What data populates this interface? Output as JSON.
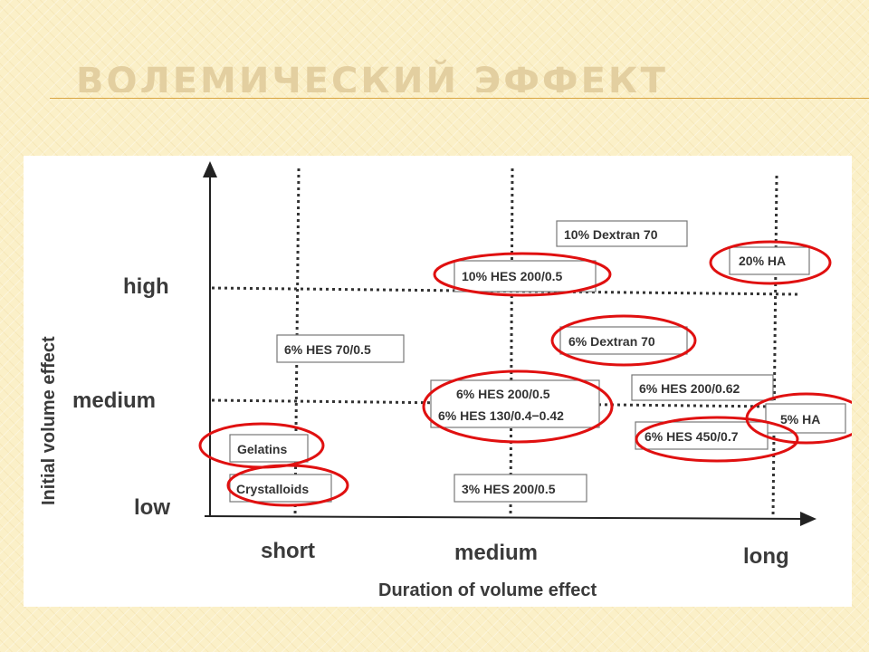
{
  "slide": {
    "title": "ВОЛЕМИЧЕСКИЙ ЭФФЕКТ"
  },
  "diagram": {
    "y_axis_title": "Initial volume effect",
    "x_axis_title": "Duration of volume effect",
    "y_levels": [
      "high",
      "medium",
      "low"
    ],
    "x_levels": [
      "short",
      "medium",
      "long"
    ],
    "items": [
      {
        "label": "10% Dextran 70",
        "circled": false
      },
      {
        "label": "20% HA",
        "circled": true
      },
      {
        "label": "10% HES 200/0.5",
        "circled": true
      },
      {
        "label": "6% Dextran 70",
        "circled": true
      },
      {
        "label": "6% HES 70/0.5",
        "circled": false
      },
      {
        "label": "6% HES 200/0.5",
        "circled": true
      },
      {
        "label": "6% HES 130/0.4−0.42",
        "circled": true
      },
      {
        "label": "6% HES 200/0.62",
        "circled": false
      },
      {
        "label": "5% HA",
        "circled": true
      },
      {
        "label": "6% HES 450/0.7",
        "circled": true
      },
      {
        "label": "Gelatins",
        "circled": true
      },
      {
        "label": "Crystalloids",
        "circled": true
      },
      {
        "label": "3% HES 200/0.5",
        "circled": false
      }
    ],
    "colors": {
      "highlight": "#e01010",
      "accent_rule": "#d9a441"
    }
  }
}
